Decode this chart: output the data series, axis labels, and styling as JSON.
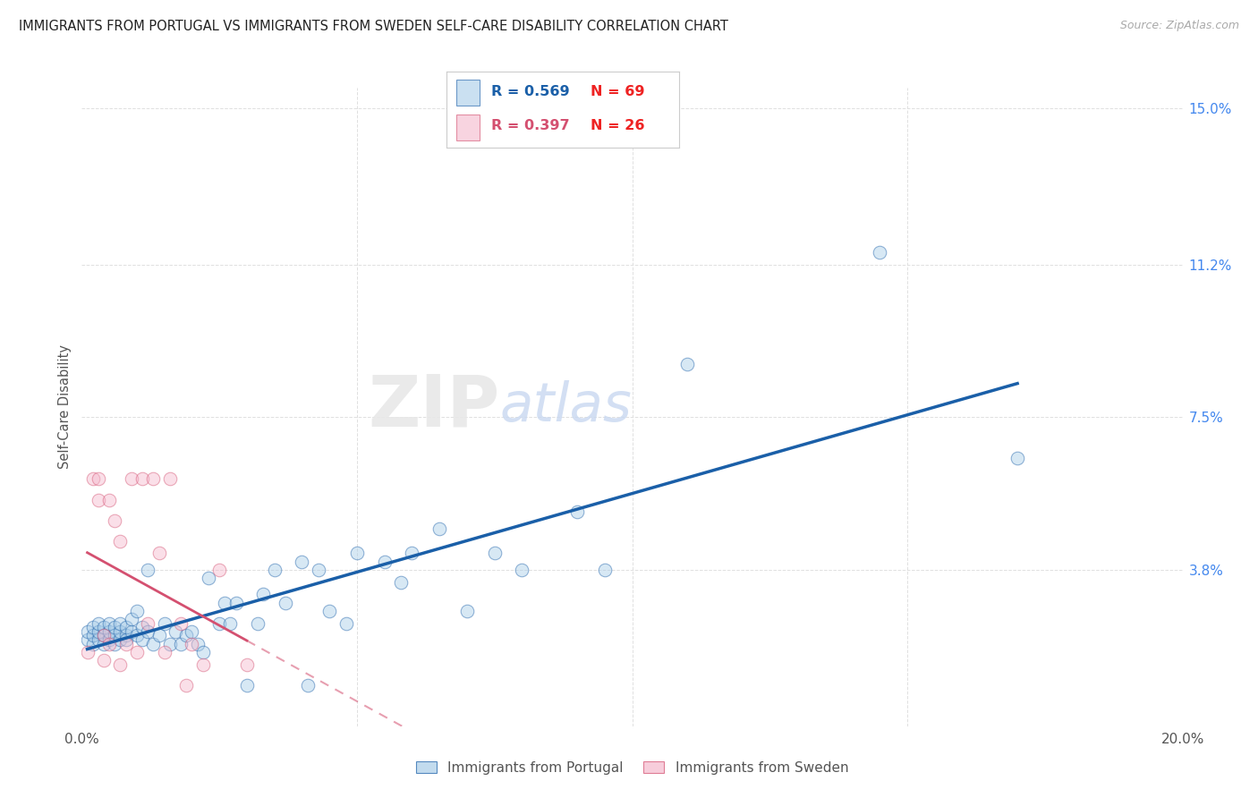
{
  "title": "IMMIGRANTS FROM PORTUGAL VS IMMIGRANTS FROM SWEDEN SELF-CARE DISABILITY CORRELATION CHART",
  "source": "Source: ZipAtlas.com",
  "ylabel": "Self-Care Disability",
  "xlim": [
    0.0,
    0.2
  ],
  "ylim": [
    0.0,
    0.155
  ],
  "ytick_positions": [
    0.0,
    0.038,
    0.075,
    0.112,
    0.15
  ],
  "ytick_labels": [
    "",
    "3.8%",
    "7.5%",
    "11.2%",
    "15.0%"
  ],
  "R_portugal": 0.569,
  "N_portugal": 69,
  "R_sweden": 0.397,
  "N_sweden": 26,
  "color_portugal": "#a8cce8",
  "color_sweden": "#f4b8cc",
  "trendline_portugal_color": "#1a5fa8",
  "trendline_sweden_color": "#d45070",
  "background_color": "#ffffff",
  "grid_color": "#e0e0e0",
  "portugal_x": [
    0.001,
    0.001,
    0.002,
    0.002,
    0.002,
    0.003,
    0.003,
    0.003,
    0.004,
    0.004,
    0.004,
    0.005,
    0.005,
    0.005,
    0.006,
    0.006,
    0.006,
    0.007,
    0.007,
    0.007,
    0.008,
    0.008,
    0.008,
    0.009,
    0.009,
    0.01,
    0.01,
    0.011,
    0.011,
    0.012,
    0.012,
    0.013,
    0.014,
    0.015,
    0.016,
    0.017,
    0.018,
    0.019,
    0.02,
    0.021,
    0.022,
    0.023,
    0.025,
    0.026,
    0.027,
    0.028,
    0.03,
    0.032,
    0.033,
    0.035,
    0.037,
    0.04,
    0.041,
    0.043,
    0.045,
    0.048,
    0.05,
    0.055,
    0.058,
    0.06,
    0.065,
    0.07,
    0.075,
    0.08,
    0.09,
    0.095,
    0.11,
    0.145,
    0.17
  ],
  "portugal_y": [
    0.021,
    0.023,
    0.02,
    0.022,
    0.024,
    0.021,
    0.023,
    0.025,
    0.02,
    0.022,
    0.024,
    0.021,
    0.023,
    0.025,
    0.02,
    0.022,
    0.024,
    0.021,
    0.023,
    0.025,
    0.022,
    0.024,
    0.021,
    0.023,
    0.026,
    0.022,
    0.028,
    0.024,
    0.021,
    0.023,
    0.038,
    0.02,
    0.022,
    0.025,
    0.02,
    0.023,
    0.02,
    0.022,
    0.023,
    0.02,
    0.018,
    0.036,
    0.025,
    0.03,
    0.025,
    0.03,
    0.01,
    0.025,
    0.032,
    0.038,
    0.03,
    0.04,
    0.01,
    0.038,
    0.028,
    0.025,
    0.042,
    0.04,
    0.035,
    0.042,
    0.048,
    0.028,
    0.042,
    0.038,
    0.052,
    0.038,
    0.088,
    0.115,
    0.065
  ],
  "sweden_x": [
    0.001,
    0.002,
    0.003,
    0.003,
    0.004,
    0.004,
    0.005,
    0.005,
    0.006,
    0.007,
    0.007,
    0.008,
    0.009,
    0.01,
    0.011,
    0.012,
    0.013,
    0.014,
    0.015,
    0.016,
    0.018,
    0.019,
    0.02,
    0.022,
    0.025,
    0.03
  ],
  "sweden_y": [
    0.018,
    0.06,
    0.055,
    0.06,
    0.022,
    0.016,
    0.055,
    0.02,
    0.05,
    0.015,
    0.045,
    0.02,
    0.06,
    0.018,
    0.06,
    0.025,
    0.06,
    0.042,
    0.018,
    0.06,
    0.025,
    0.01,
    0.02,
    0.015,
    0.038,
    0.015
  ]
}
